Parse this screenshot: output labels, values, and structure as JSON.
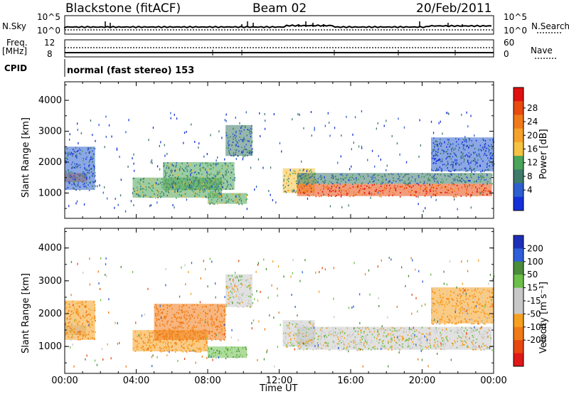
{
  "header": {
    "station": "Blackstone (fitACF)",
    "beam": "Beam 02",
    "date": "20/Feb/2011"
  },
  "strips": {
    "nsky_label": "N.Sky",
    "nsky_ticks": [
      "10^5",
      "10^0"
    ],
    "nsearch_label": "N.Search",
    "nsearch_ticks": [
      "10^5",
      "10^0"
    ],
    "freq_label_line1": "Freq.",
    "freq_label_line2": "[MHz]",
    "freq_ticks": [
      "12",
      "8"
    ],
    "nave_label": "Nave",
    "nave_ticks": [
      "60",
      "0"
    ],
    "cpid_label": "CPID",
    "cpid_text": "normal (fast stereo) 153"
  },
  "colors": {
    "power_scale": [
      "#1530d8",
      "#2d5fd0",
      "#3f7a6b",
      "#4aa45a",
      "#f5c242",
      "#f5a12a",
      "#f07a1a",
      "#e84a10",
      "#e01010"
    ],
    "velocity_scale": [
      "#1d2fb8",
      "#2f5fd8",
      "#4a8c3a",
      "#6cc04a",
      "#c8c8c8",
      "#c8c8c8",
      "#f5a020",
      "#f07a18",
      "#e84810",
      "#e01818"
    ]
  },
  "chart_data": [
    {
      "type": "heatmap",
      "title": "Power",
      "xlabel": "Time UT",
      "ylabel": "Slant Range [km]",
      "xlim": [
        0,
        24
      ],
      "ylim": [
        180,
        4600
      ],
      "xticks": [
        "00:00",
        "04:00",
        "08:00",
        "12:00",
        "16:00",
        "20:00",
        "00:00"
      ],
      "yticks": [
        "1000",
        "2000",
        "3000",
        "4000"
      ],
      "colorbar": {
        "label": "Power [dB]",
        "ticks": [
          "28",
          "24",
          "20",
          "16",
          "12",
          "8",
          "4"
        ],
        "range": [
          0,
          30
        ]
      },
      "regions": [
        {
          "t": [
            0,
            1.2
          ],
          "r": [
            1350,
            1650
          ],
          "value": 22
        },
        {
          "t": [
            0,
            1.7
          ],
          "r": [
            1100,
            2500
          ],
          "value": 6
        },
        {
          "t": [
            3.8,
            8.8
          ],
          "r": [
            850,
            1500
          ],
          "value": 12
        },
        {
          "t": [
            5.5,
            9.5
          ],
          "r": [
            1100,
            2000
          ],
          "value": 10
        },
        {
          "t": [
            8.0,
            10.2
          ],
          "r": [
            650,
            1000
          ],
          "value": 13
        },
        {
          "t": [
            9.0,
            10.5
          ],
          "r": [
            2200,
            3200
          ],
          "value": 7
        },
        {
          "t": [
            12.2,
            14.0
          ],
          "r": [
            1000,
            1800
          ],
          "value": 14
        },
        {
          "t": [
            13.0,
            23.9
          ],
          "r": [
            900,
            1300
          ],
          "value": 24
        },
        {
          "t": [
            13.0,
            23.9
          ],
          "r": [
            1300,
            1650
          ],
          "value": 8
        },
        {
          "t": [
            20.5,
            24.0
          ],
          "r": [
            1700,
            2800
          ],
          "value": 5
        }
      ]
    },
    {
      "type": "heatmap",
      "title": "Velocity",
      "xlabel": "Time UT",
      "ylabel": "Slant Range [km]",
      "xlim": [
        0,
        24
      ],
      "ylim": [
        180,
        4600
      ],
      "xticks": [
        "00:00",
        "04:00",
        "08:00",
        "12:00",
        "16:00",
        "20:00",
        "00:00"
      ],
      "yticks": [
        "1000",
        "2000",
        "3000",
        "4000"
      ],
      "colorbar": {
        "label": "Velocity [m s⁻¹]",
        "ticks": [
          "200",
          "100",
          "50",
          "15",
          "-15",
          "-50",
          "-100",
          "-200"
        ],
        "range": [
          -250,
          250
        ]
      },
      "regions": [
        {
          "t": [
            0,
            1.2
          ],
          "r": [
            1350,
            1650
          ],
          "value": 0
        },
        {
          "t": [
            0,
            1.7
          ],
          "r": [
            1200,
            2400
          ],
          "value": -40
        },
        {
          "t": [
            3.8,
            8.0
          ],
          "r": [
            850,
            1500
          ],
          "value": -45
        },
        {
          "t": [
            5.0,
            9.0
          ],
          "r": [
            1200,
            2300
          ],
          "value": -70
        },
        {
          "t": [
            8.0,
            10.2
          ],
          "r": [
            650,
            1000
          ],
          "value": 40
        },
        {
          "t": [
            9.0,
            10.5
          ],
          "r": [
            2200,
            3200
          ],
          "value": 0
        },
        {
          "t": [
            12.2,
            14.0
          ],
          "r": [
            1000,
            1800
          ],
          "value": 0
        },
        {
          "t": [
            13.0,
            23.9
          ],
          "r": [
            900,
            1600
          ],
          "value": 0
        },
        {
          "t": [
            20.5,
            24.0
          ],
          "r": [
            1700,
            2800
          ],
          "value": -30
        }
      ]
    }
  ]
}
